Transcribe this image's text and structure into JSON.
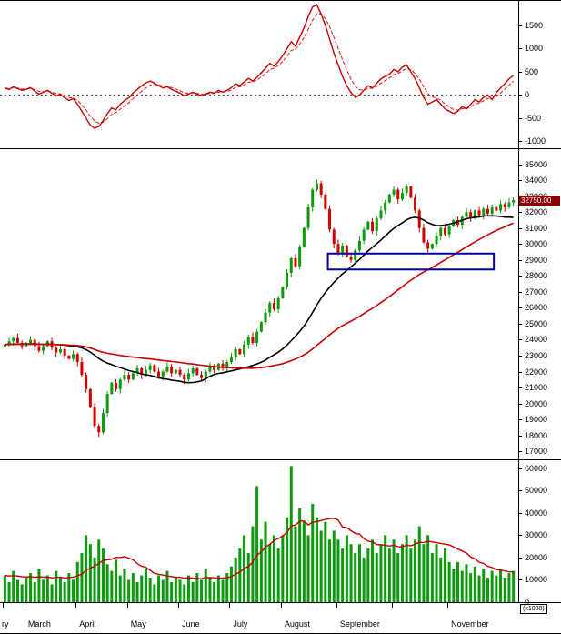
{
  "price_tag": {
    "label": "32750.00",
    "value": 32750,
    "bg_color": "#8b0000"
  },
  "axes": {
    "volume_multiplier_label": "(x1000)"
  },
  "chart_data": {
    "type": "candlestick-multi-panel",
    "title": "",
    "xlabel": "",
    "colors": {
      "up": "#0a9a0a",
      "down": "#d00000",
      "ma_fast": "#000000",
      "ma_slow": "#c80000",
      "oscillator": "#c80000",
      "signal": "#d42a2a",
      "volume_bar": "#0a9a0a",
      "volume_ma": "#c80000",
      "annotation": "#0000a0",
      "zero_line": "#333333"
    },
    "x_months": [
      {
        "label": "ry",
        "i": 0
      },
      {
        "label": "March",
        "i": 5
      },
      {
        "label": "April",
        "i": 17
      },
      {
        "label": "May",
        "i": 29
      },
      {
        "label": "June",
        "i": 41
      },
      {
        "label": "July",
        "i": 53
      },
      {
        "label": "August",
        "i": 65
      },
      {
        "label": "September",
        "i": 78
      },
      {
        "label": "",
        "i": 91
      },
      {
        "label": "November",
        "i": 104
      }
    ],
    "panels": [
      {
        "id": "oscillator",
        "type": "line",
        "ylim": [
          -1150,
          2050
        ],
        "yticks": [
          1500,
          1000,
          500,
          0,
          -500,
          -1000
        ],
        "zero_line": true,
        "values": [
          150,
          120,
          180,
          140,
          100,
          120,
          160,
          80,
          20,
          60,
          100,
          40,
          -20,
          10,
          -60,
          -120,
          -80,
          -200,
          -350,
          -500,
          -650,
          -720,
          -680,
          -550,
          -400,
          -280,
          -320,
          -200,
          -120,
          -60,
          40,
          120,
          200,
          260,
          300,
          260,
          200,
          150,
          180,
          120,
          80,
          40,
          -20,
          20,
          60,
          20,
          -20,
          20,
          60,
          40,
          100,
          60,
          100,
          160,
          240,
          200,
          280,
          360,
          300,
          380,
          480,
          580,
          680,
          620,
          720,
          850,
          1000,
          1150,
          1050,
          1250,
          1450,
          1700,
          1900,
          1950,
          1750,
          1500,
          1200,
          900,
          650,
          400,
          200,
          50,
          -50,
          0,
          100,
          200,
          150,
          250,
          350,
          400,
          450,
          550,
          500,
          600,
          650,
          500,
          350,
          150,
          -50,
          -200,
          -150,
          -100,
          -200,
          -300,
          -350,
          -400,
          -350,
          -250,
          -300,
          -200,
          -100,
          -150,
          -50,
          0,
          -100,
          50,
          150,
          250,
          350,
          420
        ]
      },
      {
        "id": "price",
        "type": "candlestick",
        "ylim": [
          16500,
          36000
        ],
        "yticks": [
          35000,
          34000,
          33000,
          32000,
          31000,
          30000,
          29000,
          28000,
          27000,
          26000,
          25000,
          24000,
          23000,
          22000,
          21000,
          20000,
          19000,
          18000,
          17000
        ],
        "first_open": 23550,
        "close": [
          23700,
          23900,
          24100,
          23800,
          23600,
          23800,
          24000,
          23600,
          23300,
          23600,
          23900,
          23500,
          23200,
          23400,
          23000,
          22800,
          23100,
          22600,
          21800,
          20900,
          19800,
          18600,
          18200,
          19400,
          20600,
          21300,
          20900,
          21500,
          21800,
          21500,
          21900,
          22200,
          21800,
          22100,
          22400,
          22000,
          21700,
          22000,
          22300,
          21900,
          22100,
          21800,
          21500,
          21900,
          22200,
          21800,
          21600,
          22000,
          22300,
          22100,
          22500,
          22200,
          22600,
          22900,
          23400,
          23100,
          23700,
          24200,
          23800,
          24500,
          25100,
          25700,
          26300,
          25900,
          26600,
          27300,
          28200,
          29100,
          28600,
          29800,
          31000,
          32300,
          33400,
          33800,
          33100,
          32200,
          30900,
          30000,
          29400,
          29900,
          29200,
          29000,
          29600,
          30200,
          30900,
          31400,
          30800,
          31600,
          32100,
          32600,
          33100,
          33400,
          32800,
          33200,
          33600,
          32900,
          32100,
          31000,
          30100,
          29700,
          30000,
          30500,
          31000,
          30600,
          31100,
          31500,
          31200,
          31700,
          32000,
          31600,
          32100,
          31800,
          32200,
          31900,
          32300,
          32100,
          32500,
          32300,
          32600,
          32750
        ],
        "wick_overrides": [
          {
            "i": 22,
            "low": 17900
          },
          {
            "i": 73,
            "high": 34050
          }
        ],
        "moving_averages": [
          {
            "name": "ma-fast",
            "window": 26,
            "color_key": "ma_fast"
          },
          {
            "name": "ma-slow",
            "window": 55,
            "color_key": "ma_slow"
          }
        ],
        "last_price": 32750,
        "annotation_box": {
          "from_index": 76,
          "to_index": 114,
          "price_top": 29400,
          "price_bottom": 28400
        }
      },
      {
        "id": "volume",
        "type": "bar",
        "ylim": [
          0,
          64000
        ],
        "yticks": [
          60000,
          50000,
          40000,
          30000,
          20000,
          10000,
          0
        ],
        "ma_window": 12,
        "values": [
          12000,
          9000,
          14000,
          10000,
          8000,
          11000,
          13000,
          9000,
          15000,
          10000,
          12000,
          8000,
          14000,
          11000,
          9000,
          13000,
          10000,
          18000,
          22000,
          30000,
          26000,
          20000,
          28000,
          24000,
          17000,
          14000,
          19000,
          12000,
          15000,
          10000,
          13000,
          9000,
          12000,
          15000,
          11000,
          8000,
          12000,
          10000,
          14000,
          9000,
          11000,
          10000,
          8000,
          12000,
          9000,
          13000,
          10000,
          15000,
          11000,
          9000,
          12000,
          10000,
          13000,
          16000,
          20000,
          24000,
          30000,
          22000,
          34000,
          52000,
          28000,
          36000,
          26000,
          30000,
          24000,
          30000,
          38000,
          61000,
          34000,
          42000,
          36000,
          30000,
          44000,
          38000,
          32000,
          36000,
          28000,
          32000,
          28000,
          24000,
          30000,
          26000,
          22000,
          26000,
          20000,
          24000,
          28000,
          22000,
          26000,
          30000,
          24000,
          28000,
          22000,
          26000,
          30000,
          24000,
          28000,
          34000,
          26000,
          30000,
          22000,
          26000,
          20000,
          24000,
          18000,
          15000,
          18000,
          14000,
          17000,
          13000,
          16000,
          12000,
          15000,
          11000,
          14000,
          12000,
          15000,
          11000,
          13000,
          14000
        ]
      }
    ]
  }
}
